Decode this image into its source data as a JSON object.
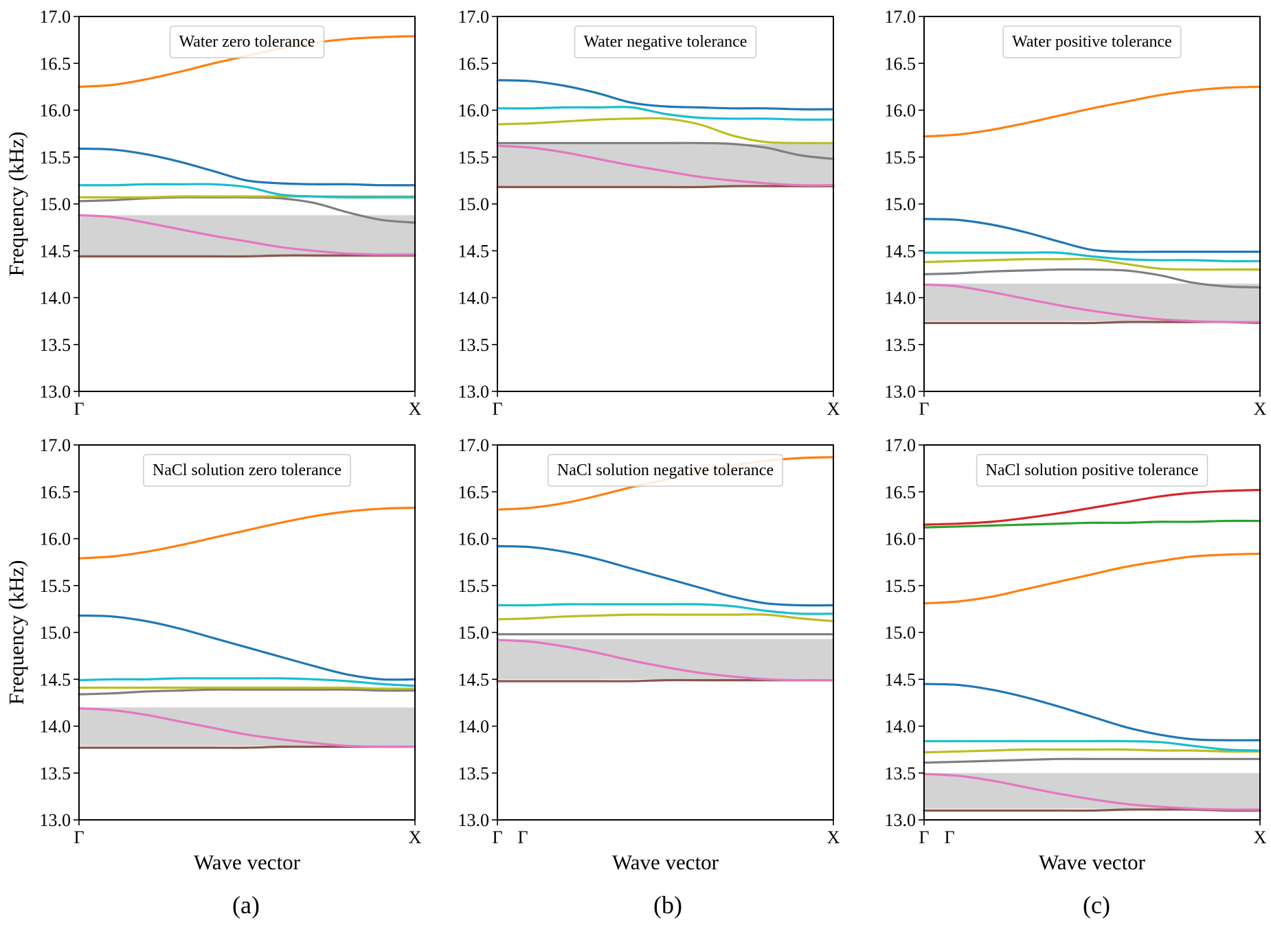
{
  "chart_data": [
    {
      "type": "line",
      "title": "Water zero tolerance",
      "xlabel": "",
      "ylabel": "Frequency (kHz)",
      "ylim": [
        13.0,
        17.0
      ],
      "yticks": [
        13.0,
        13.5,
        14.0,
        14.5,
        15.0,
        15.5,
        16.0,
        16.5,
        17.0
      ],
      "x_ticks": [
        "Γ",
        "X"
      ],
      "x_extra_ticks": [],
      "bandgap": [
        14.45,
        14.88
      ],
      "x": [
        0,
        0.1,
        0.2,
        0.3,
        0.4,
        0.5,
        0.6,
        0.7,
        0.8,
        0.9,
        1.0
      ],
      "series": [
        {
          "color": "#8c564b",
          "values": [
            14.44,
            14.44,
            14.44,
            14.44,
            14.44,
            14.44,
            14.45,
            14.45,
            14.45,
            14.45,
            14.45
          ]
        },
        {
          "color": "#e377c2",
          "values": [
            14.88,
            14.86,
            14.8,
            14.73,
            14.66,
            14.6,
            14.54,
            14.5,
            14.47,
            14.46,
            14.46
          ]
        },
        {
          "color": "#7f7f7f",
          "values": [
            15.03,
            15.04,
            15.06,
            15.07,
            15.07,
            15.07,
            15.06,
            15.01,
            14.91,
            14.83,
            14.8
          ]
        },
        {
          "color": "#bcbd22",
          "values": [
            15.07,
            15.07,
            15.07,
            15.08,
            15.08,
            15.08,
            15.08,
            15.08,
            15.08,
            15.08,
            15.08
          ]
        },
        {
          "color": "#17becf",
          "values": [
            15.2,
            15.2,
            15.21,
            15.21,
            15.21,
            15.18,
            15.1,
            15.08,
            15.07,
            15.07,
            15.07
          ]
        },
        {
          "color": "#1f77b4",
          "values": [
            15.59,
            15.58,
            15.53,
            15.45,
            15.35,
            15.25,
            15.22,
            15.21,
            15.21,
            15.2,
            15.2
          ]
        },
        {
          "color": "#ff7f0e",
          "values": [
            16.25,
            16.27,
            16.33,
            16.41,
            16.5,
            16.58,
            16.66,
            16.72,
            16.76,
            16.78,
            16.79
          ]
        }
      ]
    },
    {
      "type": "line",
      "title": "Water negative tolerance",
      "xlabel": "",
      "ylabel": "",
      "ylim": [
        13.0,
        17.0
      ],
      "yticks": [
        13.0,
        13.5,
        14.0,
        14.5,
        15.0,
        15.5,
        16.0,
        16.5,
        17.0
      ],
      "x_ticks": [
        "Γ",
        "X"
      ],
      "x_extra_ticks": [],
      "bandgap": [
        15.19,
        15.64
      ],
      "x": [
        0,
        0.1,
        0.2,
        0.3,
        0.4,
        0.5,
        0.6,
        0.7,
        0.8,
        0.9,
        1.0
      ],
      "series": [
        {
          "color": "#8c564b",
          "values": [
            15.18,
            15.18,
            15.18,
            15.18,
            15.18,
            15.18,
            15.18,
            15.19,
            15.19,
            15.19,
            15.19
          ]
        },
        {
          "color": "#e377c2",
          "values": [
            15.62,
            15.6,
            15.55,
            15.48,
            15.41,
            15.35,
            15.29,
            15.25,
            15.22,
            15.2,
            15.2
          ]
        },
        {
          "color": "#7f7f7f",
          "values": [
            15.65,
            15.65,
            15.65,
            15.65,
            15.65,
            15.65,
            15.65,
            15.64,
            15.6,
            15.52,
            15.48
          ]
        },
        {
          "color": "#bcbd22",
          "values": [
            15.85,
            15.86,
            15.88,
            15.9,
            15.91,
            15.91,
            15.85,
            15.73,
            15.66,
            15.65,
            15.65
          ]
        },
        {
          "color": "#17becf",
          "values": [
            16.02,
            16.02,
            16.03,
            16.03,
            16.03,
            15.96,
            15.92,
            15.91,
            15.91,
            15.9,
            15.9
          ]
        },
        {
          "color": "#1f77b4",
          "values": [
            16.32,
            16.31,
            16.26,
            16.18,
            16.08,
            16.04,
            16.03,
            16.02,
            16.02,
            16.01,
            16.01
          ]
        }
      ]
    },
    {
      "type": "line",
      "title": "Water positive tolerance",
      "xlabel": "",
      "ylabel": "",
      "ylim": [
        13.0,
        17.0
      ],
      "yticks": [
        13.0,
        13.5,
        14.0,
        14.5,
        15.0,
        15.5,
        16.0,
        16.5,
        17.0
      ],
      "x_ticks": [
        "Γ",
        "X"
      ],
      "x_extra_ticks": [],
      "bandgap": [
        13.75,
        14.15
      ],
      "x": [
        0,
        0.1,
        0.2,
        0.3,
        0.4,
        0.5,
        0.6,
        0.7,
        0.8,
        0.9,
        1.0
      ],
      "series": [
        {
          "color": "#8c564b",
          "values": [
            13.73,
            13.73,
            13.73,
            13.73,
            13.73,
            13.73,
            13.74,
            13.74,
            13.74,
            13.74,
            13.73
          ]
        },
        {
          "color": "#e377c2",
          "values": [
            14.14,
            14.12,
            14.06,
            13.99,
            13.92,
            13.86,
            13.81,
            13.77,
            13.75,
            13.74,
            13.74
          ]
        },
        {
          "color": "#7f7f7f",
          "values": [
            14.25,
            14.26,
            14.28,
            14.29,
            14.3,
            14.3,
            14.29,
            14.24,
            14.16,
            14.12,
            14.11
          ]
        },
        {
          "color": "#bcbd22",
          "values": [
            14.38,
            14.39,
            14.4,
            14.41,
            14.41,
            14.41,
            14.36,
            14.31,
            14.3,
            14.3,
            14.3
          ]
        },
        {
          "color": "#17becf",
          "values": [
            14.48,
            14.48,
            14.48,
            14.48,
            14.48,
            14.44,
            14.41,
            14.4,
            14.4,
            14.39,
            14.39
          ]
        },
        {
          "color": "#1f77b4",
          "values": [
            14.84,
            14.83,
            14.78,
            14.7,
            14.6,
            14.51,
            14.49,
            14.49,
            14.49,
            14.49,
            14.49
          ]
        },
        {
          "color": "#ff7f0e",
          "values": [
            15.72,
            15.74,
            15.79,
            15.86,
            15.94,
            16.02,
            16.09,
            16.16,
            16.21,
            16.24,
            16.25
          ]
        }
      ]
    },
    {
      "type": "line",
      "title": "NaCl solution zero tolerance",
      "xlabel": "Wave vector",
      "ylabel": "Frequency (kHz)",
      "ylim": [
        13.0,
        17.0
      ],
      "yticks": [
        13.0,
        13.5,
        14.0,
        14.5,
        15.0,
        15.5,
        16.0,
        16.5,
        17.0
      ],
      "x_ticks": [
        "Γ",
        "X"
      ],
      "x_extra_ticks": [],
      "bandgap": [
        13.79,
        14.2
      ],
      "x": [
        0,
        0.1,
        0.2,
        0.3,
        0.4,
        0.5,
        0.6,
        0.7,
        0.8,
        0.9,
        1.0
      ],
      "series": [
        {
          "color": "#8c564b",
          "values": [
            13.77,
            13.77,
            13.77,
            13.77,
            13.77,
            13.77,
            13.78,
            13.78,
            13.78,
            13.78,
            13.78
          ]
        },
        {
          "color": "#e377c2",
          "values": [
            14.19,
            14.17,
            14.12,
            14.05,
            13.98,
            13.91,
            13.86,
            13.82,
            13.79,
            13.78,
            13.78
          ]
        },
        {
          "color": "#7f7f7f",
          "values": [
            14.34,
            14.35,
            14.37,
            14.38,
            14.39,
            14.39,
            14.39,
            14.39,
            14.39,
            14.38,
            14.38
          ]
        },
        {
          "color": "#bcbd22",
          "values": [
            14.41,
            14.41,
            14.41,
            14.41,
            14.41,
            14.41,
            14.41,
            14.41,
            14.41,
            14.4,
            14.4
          ]
        },
        {
          "color": "#17becf",
          "values": [
            14.49,
            14.5,
            14.5,
            14.51,
            14.51,
            14.51,
            14.51,
            14.5,
            14.48,
            14.45,
            14.43
          ]
        },
        {
          "color": "#1f77b4",
          "values": [
            15.18,
            15.17,
            15.12,
            15.04,
            14.94,
            14.84,
            14.74,
            14.64,
            14.55,
            14.5,
            14.5
          ]
        },
        {
          "color": "#ff7f0e",
          "values": [
            15.79,
            15.81,
            15.86,
            15.93,
            16.01,
            16.09,
            16.17,
            16.24,
            16.29,
            16.32,
            16.33
          ]
        }
      ]
    },
    {
      "type": "line",
      "title": "NaCl solution negative tolerance",
      "xlabel": "Wave vector",
      "ylabel": "",
      "ylim": [
        13.0,
        17.0
      ],
      "yticks": [
        13.0,
        13.5,
        14.0,
        14.5,
        15.0,
        15.5,
        16.0,
        16.5,
        17.0
      ],
      "x_ticks": [
        "Γ",
        "X"
      ],
      "x_extra_ticks": [
        "Γ"
      ],
      "bandgap": [
        14.5,
        14.93
      ],
      "x": [
        0,
        0.1,
        0.2,
        0.3,
        0.4,
        0.5,
        0.6,
        0.7,
        0.8,
        0.9,
        1.0
      ],
      "series": [
        {
          "color": "#8c564b",
          "values": [
            14.48,
            14.48,
            14.48,
            14.48,
            14.48,
            14.49,
            14.49,
            14.49,
            14.49,
            14.49,
            14.49
          ]
        },
        {
          "color": "#e377c2",
          "values": [
            14.92,
            14.9,
            14.85,
            14.78,
            14.7,
            14.63,
            14.57,
            14.53,
            14.5,
            14.49,
            14.49
          ]
        },
        {
          "color": "#7f7f7f",
          "values": [
            14.98,
            14.98,
            14.98,
            14.98,
            14.98,
            14.98,
            14.98,
            14.98,
            14.98,
            14.98,
            14.98
          ]
        },
        {
          "color": "#bcbd22",
          "values": [
            15.14,
            15.15,
            15.17,
            15.18,
            15.19,
            15.19,
            15.19,
            15.19,
            15.19,
            15.15,
            15.12
          ]
        },
        {
          "color": "#17becf",
          "values": [
            15.29,
            15.29,
            15.3,
            15.3,
            15.3,
            15.3,
            15.3,
            15.28,
            15.23,
            15.2,
            15.2
          ]
        },
        {
          "color": "#1f77b4",
          "values": [
            15.92,
            15.91,
            15.86,
            15.78,
            15.68,
            15.58,
            15.48,
            15.38,
            15.31,
            15.29,
            15.29
          ]
        },
        {
          "color": "#ff7f0e",
          "values": [
            16.31,
            16.33,
            16.38,
            16.46,
            16.55,
            16.63,
            16.71,
            16.78,
            16.83,
            16.86,
            16.87
          ]
        }
      ]
    },
    {
      "type": "line",
      "title": "NaCl solution positive tolerance",
      "xlabel": "Wave vector",
      "ylabel": "",
      "ylim": [
        13.0,
        17.0
      ],
      "yticks": [
        13.0,
        13.5,
        14.0,
        14.5,
        15.0,
        15.5,
        16.0,
        16.5,
        17.0
      ],
      "x_ticks": [
        "Γ",
        "X"
      ],
      "x_extra_ticks": [
        "Γ"
      ],
      "bandgap": [
        13.12,
        13.5
      ],
      "x": [
        0,
        0.1,
        0.2,
        0.3,
        0.4,
        0.5,
        0.6,
        0.7,
        0.8,
        0.9,
        1.0
      ],
      "series": [
        {
          "color": "#8c564b",
          "values": [
            13.1,
            13.1,
            13.1,
            13.1,
            13.1,
            13.1,
            13.11,
            13.11,
            13.11,
            13.1,
            13.1
          ]
        },
        {
          "color": "#e377c2",
          "values": [
            13.49,
            13.47,
            13.42,
            13.35,
            13.28,
            13.22,
            13.17,
            13.14,
            13.12,
            13.11,
            13.11
          ]
        },
        {
          "color": "#7f7f7f",
          "values": [
            13.61,
            13.62,
            13.63,
            13.64,
            13.65,
            13.65,
            13.65,
            13.65,
            13.65,
            13.65,
            13.65
          ]
        },
        {
          "color": "#bcbd22",
          "values": [
            13.72,
            13.73,
            13.74,
            13.75,
            13.75,
            13.75,
            13.75,
            13.74,
            13.74,
            13.73,
            13.73
          ]
        },
        {
          "color": "#17becf",
          "values": [
            13.84,
            13.84,
            13.84,
            13.84,
            13.84,
            13.84,
            13.84,
            13.83,
            13.79,
            13.75,
            13.74
          ]
        },
        {
          "color": "#1f77b4",
          "values": [
            14.45,
            14.44,
            14.39,
            14.31,
            14.21,
            14.1,
            13.99,
            13.91,
            13.86,
            13.85,
            13.85
          ]
        },
        {
          "color": "#ff7f0e",
          "values": [
            15.31,
            15.33,
            15.38,
            15.46,
            15.54,
            15.62,
            15.7,
            15.76,
            15.81,
            15.83,
            15.84
          ]
        },
        {
          "color": "#2ca02c",
          "values": [
            16.12,
            16.13,
            16.14,
            16.15,
            16.16,
            16.17,
            16.17,
            16.18,
            16.18,
            16.19,
            16.19
          ]
        },
        {
          "color": "#d62728",
          "values": [
            16.15,
            16.16,
            16.18,
            16.22,
            16.27,
            16.33,
            16.39,
            16.45,
            16.49,
            16.51,
            16.52
          ]
        }
      ]
    }
  ],
  "panel_letters": [
    "(a)",
    "(b)",
    "(c)"
  ]
}
